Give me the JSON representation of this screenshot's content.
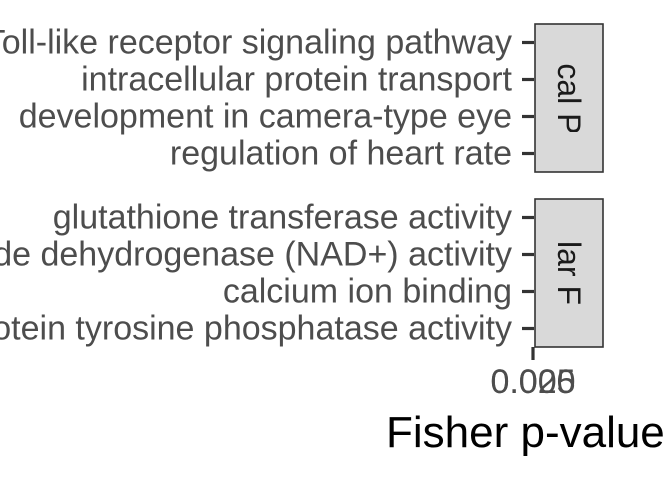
{
  "chart_data": {
    "type": "bar",
    "xlabel": "Fisher p-value",
    "ylabel": "",
    "x_tick_labels": [
      "0.000",
      "0.025"
    ],
    "facets": [
      {
        "strip_label": "Biological Process",
        "categories": [
          "Toll-like receptor signaling pathway",
          "intracellular protein transport",
          "development in camera-type eye",
          "regulation of heart rate"
        ],
        "values": [
          0,
          0,
          0,
          0
        ]
      },
      {
        "strip_label": "Molecular Function",
        "categories": [
          "glutathione transferase activity",
          "aldehyde dehydrogenase (NAD+) activity",
          "calcium ion binding",
          "protein tyrosine phosphatase activity"
        ],
        "values": [
          0,
          0,
          0,
          0
        ]
      }
    ],
    "colors": {
      "strip_fill": "#d9d9d9",
      "label": "#4d4d4d",
      "tick": "#333333"
    }
  }
}
